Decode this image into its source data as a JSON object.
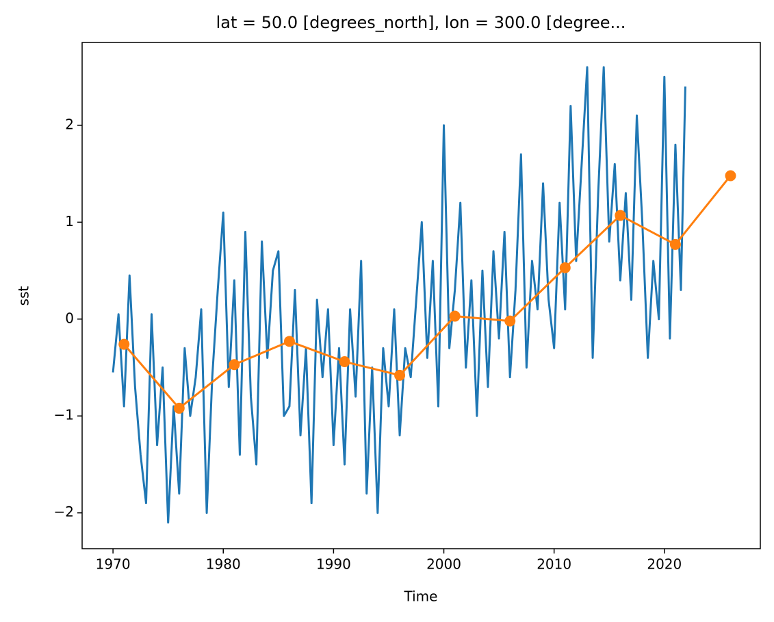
{
  "chart_data": {
    "type": "line",
    "title": "lat = 50.0 [degrees_north], lon = 300.0 [degree...",
    "xlabel": "Time",
    "ylabel": "sst",
    "xlim": [
      1967.2,
      2028.7
    ],
    "xticks": [
      1970,
      1980,
      1990,
      2000,
      2010,
      2020
    ],
    "ylim": [
      -2.37,
      2.855
    ],
    "yticks": [
      {
        "value": -2,
        "label": "−2"
      },
      {
        "value": -1,
        "label": "−1"
      },
      0,
      1,
      2
    ],
    "grid": false,
    "series": [
      {
        "color": "#1f77b4",
        "marker": false,
        "x": [
          1970.0,
          1970.5,
          1971.0,
          1971.5,
          1972.0,
          1972.5,
          1973.0,
          1973.5,
          1974.0,
          1974.5,
          1975.0,
          1975.5,
          1976.0,
          1976.5,
          1977.0,
          1977.5,
          1978.0,
          1978.5,
          1979.0,
          1979.5,
          1980.0,
          1980.5,
          1981.0,
          1981.5,
          1982.0,
          1982.5,
          1983.0,
          1983.5,
          1984.0,
          1984.5,
          1985.0,
          1985.5,
          1986.0,
          1986.5,
          1987.0,
          1987.5,
          1988.0,
          1988.5,
          1989.0,
          1989.5,
          1990.0,
          1990.5,
          1991.0,
          1991.5,
          1992.0,
          1992.5,
          1993.0,
          1993.5,
          1994.0,
          1994.5,
          1995.0,
          1995.5,
          1996.0,
          1996.5,
          1997.0,
          1997.5,
          1998.0,
          1998.5,
          1999.0,
          1999.5,
          2000.0,
          2000.5,
          2001.0,
          2001.5,
          2002.0,
          2002.5,
          2003.0,
          2003.5,
          2004.0,
          2004.5,
          2005.0,
          2005.5,
          2006.0,
          2006.5,
          2007.0,
          2007.5,
          2008.0,
          2008.5,
          2009.0,
          2009.5,
          2010.0,
          2010.5,
          2011.0,
          2011.5,
          2012.0,
          2012.5,
          2013.0,
          2013.5,
          2014.0,
          2014.5,
          2015.0,
          2015.5,
          2016.0,
          2016.5,
          2017.0,
          2017.5,
          2018.0,
          2018.5,
          2019.0,
          2019.5,
          2020.0,
          2020.5,
          2021.0,
          2021.5,
          2021.9
        ],
        "values": [
          -0.55,
          0.05,
          -0.9,
          0.45,
          -0.7,
          -1.4,
          -1.9,
          0.05,
          -1.3,
          -0.5,
          -2.1,
          -0.9,
          -1.8,
          -0.3,
          -1.0,
          -0.6,
          0.1,
          -2.0,
          -0.6,
          0.3,
          1.1,
          -0.7,
          0.4,
          -1.4,
          0.9,
          -0.8,
          -1.5,
          0.8,
          -0.4,
          0.5,
          0.7,
          -1.0,
          -0.9,
          0.3,
          -1.2,
          -0.3,
          -1.9,
          0.2,
          -0.6,
          0.1,
          -1.3,
          -0.3,
          -1.5,
          0.1,
          -0.8,
          0.6,
          -1.8,
          -0.5,
          -2.0,
          -0.3,
          -0.9,
          0.1,
          -1.2,
          -0.3,
          -0.6,
          0.2,
          1.0,
          -0.4,
          0.6,
          -0.9,
          2.0,
          -0.3,
          0.3,
          1.2,
          -0.5,
          0.4,
          -1.0,
          0.5,
          -0.7,
          0.7,
          -0.2,
          0.9,
          -0.6,
          0.3,
          1.7,
          -0.5,
          0.6,
          0.1,
          1.4,
          0.2,
          -0.3,
          1.2,
          0.1,
          2.2,
          0.6,
          1.6,
          2.6,
          -0.4,
          1.3,
          2.6,
          0.8,
          1.6,
          0.4,
          1.3,
          0.2,
          2.1,
          1.0,
          -0.4,
          0.6,
          0.0,
          2.5,
          -0.2,
          1.8,
          0.3,
          2.4
        ]
      },
      {
        "color": "#ff7f0e",
        "marker": true,
        "x": [
          1971,
          1976,
          1981,
          1986,
          1991,
          1996,
          2001,
          2006,
          2011,
          2016,
          2021,
          2026
        ],
        "values": [
          -0.26,
          -0.92,
          -0.47,
          -0.23,
          -0.44,
          -0.58,
          0.03,
          -0.02,
          0.53,
          1.07,
          0.77,
          1.48
        ]
      }
    ]
  }
}
